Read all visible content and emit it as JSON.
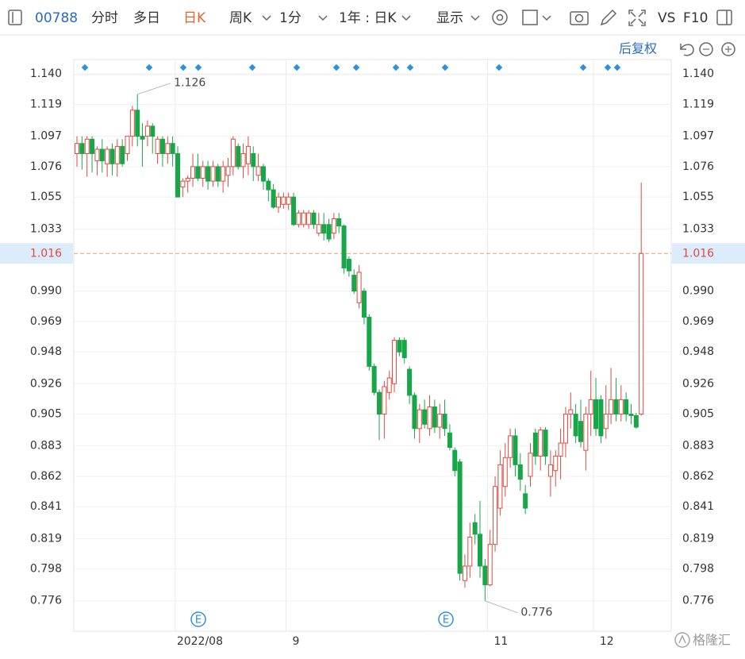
{
  "toolbar": {
    "code": "00788",
    "tabs": [
      "分时",
      "多日",
      "日K",
      "周K",
      "1分",
      "1年 : 日K",
      "显示"
    ],
    "vs": "VS",
    "f10": "F10",
    "adjust": "后复权",
    "watermark": "格隆汇"
  },
  "chart_data": {
    "type": "candlestick",
    "categories": [
      null,
      null,
      null,
      null,
      null,
      null,
      null,
      null,
      null,
      null,
      null,
      null,
      null,
      null,
      null,
      null,
      null,
      null,
      null,
      null,
      "2022/08",
      null,
      null,
      null,
      null,
      null,
      null,
      null,
      null,
      null,
      null,
      null,
      null,
      null,
      null,
      null,
      null,
      null,
      null,
      null,
      null,
      null,
      "9",
      null,
      null,
      null,
      null,
      null,
      null,
      null,
      null,
      null,
      null,
      null,
      null,
      null,
      null,
      null,
      null,
      null,
      null,
      null,
      null,
      null,
      null,
      null,
      null,
      null,
      null,
      null,
      null,
      null,
      null,
      null,
      null,
      null,
      null,
      null,
      null,
      null,
      null,
      null,
      "11",
      null,
      null,
      null,
      null,
      null,
      null,
      null,
      null,
      null,
      null,
      null,
      null,
      null,
      null,
      null,
      null,
      null,
      null,
      null,
      null,
      "12",
      null,
      null,
      null,
      null,
      null,
      null,
      null,
      null,
      null
    ],
    "open": [
      1.085,
      1.092,
      1.085,
      1.095,
      1.08,
      1.088,
      1.078,
      1.088,
      1.078,
      1.09,
      1.085,
      1.097,
      1.115,
      1.097,
      1.097,
      1.104,
      1.085,
      1.095,
      1.085,
      1.092,
      1.085,
      1.062,
      1.066,
      1.068,
      1.076,
      1.068,
      1.076,
      1.066,
      1.076,
      1.066,
      1.07,
      1.076,
      1.09,
      1.076,
      1.078,
      1.085,
      1.07,
      1.076,
      1.066,
      1.06,
      1.048,
      1.05,
      1.05,
      1.055,
      1.036,
      1.036,
      1.036,
      1.044,
      1.03,
      1.036,
      1.036,
      1.03,
      1.04,
      1.035,
      1.012,
      1.001,
      0.982,
      0.99,
      0.972,
      0.938,
      0.92,
      0.905,
      0.92,
      0.926,
      0.956,
      0.956,
      0.936,
      0.918,
      0.895,
      0.908,
      0.895,
      0.91,
      0.896,
      0.905,
      0.892,
      0.88,
      0.872,
      0.79,
      0.8,
      0.83,
      0.822,
      0.8,
      0.787,
      0.815,
      0.84,
      0.855,
      0.875,
      0.89,
      0.87,
      0.85,
      0.862,
      0.892,
      0.876,
      0.894,
      0.862,
      0.866,
      0.876,
      0.885,
      0.905,
      0.905,
      0.9,
      0.88,
      0.905,
      0.915,
      0.915,
      0.895,
      0.905,
      0.915,
      0.905,
      0.915,
      0.905,
      0.904,
      0.905
    ],
    "high": [
      1.097,
      1.097,
      1.097,
      1.097,
      1.09,
      1.095,
      1.09,
      1.092,
      1.095,
      1.095,
      1.097,
      1.118,
      1.126,
      1.106,
      1.108,
      1.106,
      1.097,
      1.097,
      1.097,
      1.097,
      1.09,
      1.068,
      1.07,
      1.085,
      1.085,
      1.08,
      1.08,
      1.08,
      1.078,
      1.08,
      1.082,
      1.097,
      1.092,
      1.092,
      1.097,
      1.09,
      1.085,
      1.078,
      1.068,
      1.064,
      1.058,
      1.058,
      1.058,
      1.058,
      1.046,
      1.046,
      1.046,
      1.046,
      1.044,
      1.044,
      1.04,
      1.044,
      1.044,
      1.036,
      1.014,
      1.005,
      1.008,
      0.992,
      0.974,
      0.94,
      0.922,
      0.928,
      0.935,
      0.958,
      0.958,
      0.958,
      0.938,
      0.92,
      0.912,
      0.915,
      0.918,
      0.915,
      0.912,
      0.915,
      0.898,
      0.882,
      0.874,
      0.808,
      0.83,
      0.836,
      0.845,
      0.805,
      0.825,
      0.862,
      0.88,
      0.885,
      0.895,
      0.895,
      0.878,
      0.856,
      0.885,
      0.895,
      0.896,
      0.896,
      0.88,
      0.88,
      0.895,
      0.91,
      0.92,
      0.912,
      0.915,
      0.91,
      0.935,
      0.93,
      0.918,
      0.925,
      0.937,
      0.93,
      0.925,
      0.92,
      0.912,
      0.906,
      1.065
    ],
    "low": [
      1.076,
      1.074,
      1.069,
      1.072,
      1.07,
      1.072,
      1.069,
      1.07,
      1.069,
      1.076,
      1.08,
      1.09,
      1.09,
      1.076,
      1.09,
      1.085,
      1.078,
      1.076,
      1.078,
      1.076,
      1.055,
      1.055,
      1.058,
      1.062,
      1.066,
      1.062,
      1.06,
      1.062,
      1.062,
      1.058,
      1.062,
      1.07,
      1.074,
      1.068,
      1.07,
      1.066,
      1.066,
      1.06,
      1.052,
      1.047,
      1.044,
      1.047,
      1.046,
      1.035,
      1.034,
      1.034,
      1.033,
      1.033,
      1.028,
      1.025,
      1.024,
      1.026,
      1.03,
      1.002,
      1.0,
      0.988,
      0.978,
      0.967,
      0.935,
      0.918,
      0.887,
      0.888,
      0.915,
      0.92,
      0.945,
      0.94,
      0.912,
      0.888,
      0.885,
      0.895,
      0.89,
      0.892,
      0.888,
      0.89,
      0.88,
      0.862,
      0.79,
      0.785,
      0.792,
      0.815,
      0.792,
      0.776,
      0.786,
      0.81,
      0.835,
      0.848,
      0.868,
      0.862,
      0.852,
      0.836,
      0.855,
      0.87,
      0.866,
      0.87,
      0.848,
      0.855,
      0.86,
      0.875,
      0.895,
      0.885,
      0.882,
      0.866,
      0.89,
      0.89,
      0.885,
      0.888,
      0.898,
      0.9,
      0.9,
      0.9,
      0.898,
      0.895,
      0.904
    ],
    "close": [
      1.092,
      1.085,
      1.095,
      1.085,
      1.088,
      1.08,
      1.088,
      1.078,
      1.09,
      1.078,
      1.097,
      1.115,
      1.097,
      1.095,
      1.104,
      1.097,
      1.095,
      1.085,
      1.092,
      1.085,
      1.055,
      1.066,
      1.068,
      1.076,
      1.068,
      1.076,
      1.066,
      1.076,
      1.066,
      1.076,
      1.076,
      1.095,
      1.076,
      1.085,
      1.09,
      1.076,
      1.076,
      1.066,
      1.06,
      1.048,
      1.055,
      1.055,
      1.055,
      1.036,
      1.044,
      1.044,
      1.044,
      1.036,
      1.036,
      1.03,
      1.026,
      1.04,
      1.035,
      1.006,
      1.004,
      0.99,
      1.003,
      0.972,
      0.938,
      0.92,
      0.905,
      0.924,
      0.93,
      0.956,
      0.948,
      0.944,
      0.918,
      0.895,
      0.908,
      0.898,
      0.91,
      0.896,
      0.905,
      0.895,
      0.882,
      0.866,
      0.795,
      0.8,
      0.82,
      0.822,
      0.8,
      0.787,
      0.815,
      0.855,
      0.87,
      0.875,
      0.89,
      0.87,
      0.86,
      0.84,
      0.878,
      0.876,
      0.894,
      0.876,
      0.87,
      0.876,
      0.885,
      0.905,
      0.908,
      0.89,
      0.886,
      0.905,
      0.915,
      0.895,
      0.89,
      0.905,
      0.915,
      0.905,
      0.915,
      0.905,
      0.904,
      0.896,
      1.016
    ],
    "up_color": "#e04a3f",
    "down_color": "#17a748",
    "ylim": [
      0.755,
      1.15
    ],
    "yticks": [
      {
        "value": 1.14,
        "label": "1.140"
      },
      1.119,
      1.097,
      1.076,
      1.055,
      1.033,
      {
        "value": 0.99,
        "label": "0.990"
      },
      0.969,
      0.948,
      0.926,
      0.905,
      0.883,
      0.862,
      0.841,
      0.819,
      0.798,
      0.776
    ],
    "grid": true,
    "last_price": 1.016,
    "annotations": [
      1.126,
      0.776
    ],
    "event_markers": [
      "E",
      "E"
    ]
  }
}
